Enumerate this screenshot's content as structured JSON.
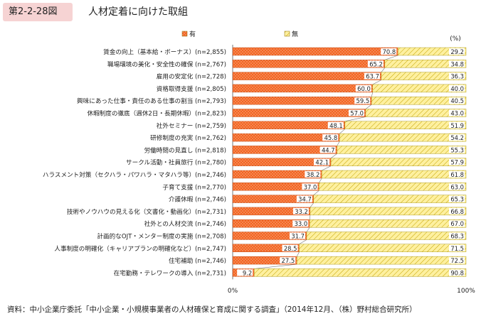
{
  "figure": {
    "number": "第2-2-28図",
    "title": "人材定着に向けた取組"
  },
  "source": "資料：中小企業庁委託「中小企業・小規模事業者の人材確保と育成に関する調査」（2014年12月、（株）野村総合研究所）",
  "colors": {
    "yes": "#f26522",
    "no": "#fdf0a0",
    "title_badge": "#f6d3d3"
  },
  "chart_data": {
    "type": "bar",
    "orientation": "horizontal",
    "stacked": true,
    "unit_label": "(%)",
    "xlim": [
      0,
      100
    ],
    "x_tick_labels": [
      "0%",
      "100%"
    ],
    "legend_position": "top",
    "categories": [
      "賃金の向上（基本給・ボーナス）(n=2,855)",
      "職場環境の美化・安全性の確保 (n=2,767)",
      "雇用の安定化 (n=2,728)",
      "資格取得支援 (n=2,805)",
      "興味にあった仕事・責任のある仕事の割当 (n=2,793)",
      "休暇制度の徹底（週休2日・長期休暇）(n=2,823)",
      "社外セミナー (n=2,759)",
      "研修制度の充実 (n=2,762)",
      "労働時間の見直し (n=2,818)",
      "サークル活動・社員旅行 (n=2,780)",
      "ハラスメント対策（セクハラ・パワハラ・マタハラ等）(n=2,746)",
      "子育て支援 (n=2,770)",
      "介護休暇 (n=2,746)",
      "技術やノウハウの見える化（文書化・動画化）(n=2,731)",
      "社外との人材交流 (n=2,746)",
      "計画的なOJT・メンター制度の実施 (n=2,708)",
      "人事制度の明確化（キャリアプランの明確化など）(n=2,747)",
      "住宅補助 (n=2,746)",
      "在宅勤務・テレワークの導入 (n=2,731)"
    ],
    "series": [
      {
        "name": "有",
        "values": [
          70.8,
          65.2,
          63.7,
          60.0,
          59.5,
          57.0,
          48.1,
          45.8,
          44.7,
          42.1,
          38.2,
          37.0,
          34.7,
          33.2,
          33.0,
          31.7,
          28.5,
          27.5,
          9.2
        ],
        "labels": [
          "70.8",
          "65.2",
          "63.7",
          "60.0",
          "59.5",
          "57.0",
          "48.1",
          "45.8",
          "44.7",
          "42.1",
          "38.2",
          "37.0",
          "34.7",
          "33.2",
          "33.0",
          "31.7",
          "28.5",
          "27.5",
          "9.2"
        ]
      },
      {
        "name": "無",
        "values": [
          29.2,
          34.8,
          36.3,
          40.0,
          40.5,
          43.0,
          51.9,
          54.2,
          55.3,
          57.9,
          61.8,
          63.0,
          65.3,
          66.8,
          67.0,
          68.3,
          71.5,
          72.5,
          90.8
        ],
        "labels": [
          "29.2",
          "34.8",
          "36.3",
          "40.0",
          "40.5",
          "43.0",
          "51.9",
          "54.2",
          "55.3",
          "57.9",
          "61.8",
          "63.0",
          "65.3",
          "66.8",
          "67.0",
          "68.3",
          "71.5",
          "72.5",
          "90.8"
        ]
      }
    ]
  }
}
